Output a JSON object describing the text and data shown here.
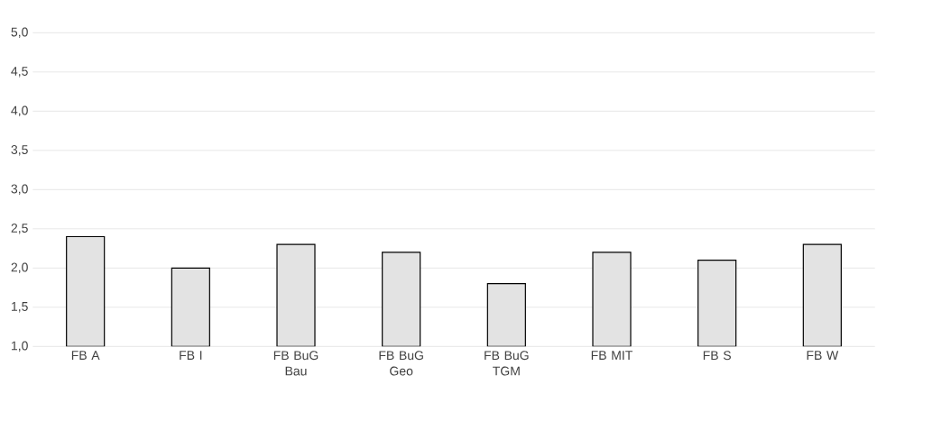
{
  "chart_data": {
    "type": "bar",
    "categories": [
      "FB A",
      "FB I",
      "FB BuG Bau",
      "FB BuG Geo",
      "FB BuG TGM",
      "FB MIT",
      "FB S",
      "FB W"
    ],
    "values": [
      2.4,
      2.0,
      2.3,
      2.2,
      1.8,
      2.2,
      2.1,
      2.3
    ],
    "color": "#e3e3e3",
    "ylim": [
      1,
      5
    ],
    "yticks": [
      {
        "value": 1,
        "label": "1,0"
      },
      {
        "value": 1.5,
        "label": "1,5"
      },
      {
        "value": 2,
        "label": "2,0"
      },
      {
        "value": 2.5,
        "label": "2,5"
      },
      {
        "value": 3,
        "label": "3,0"
      },
      {
        "value": 3.5,
        "label": "3,5"
      },
      {
        "value": 4,
        "label": "4,0"
      },
      {
        "value": 4.5,
        "label": "4,5"
      },
      {
        "value": 5,
        "label": "5,0"
      }
    ],
    "grid": "y"
  }
}
